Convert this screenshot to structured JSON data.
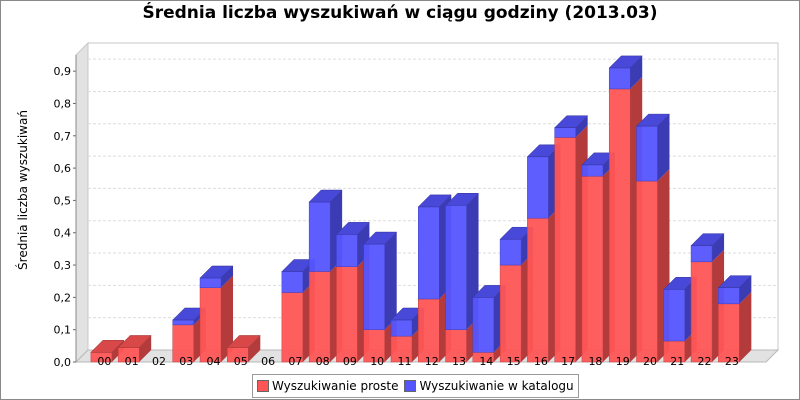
{
  "chart_data": {
    "type": "bar",
    "title": "Średnia liczba wyszukiwań w ciągu godziny (2013.03)",
    "xlabel": "",
    "ylabel": "Średnia liczba wyszukiwań",
    "ylim": [
      0,
      0.95
    ],
    "yticks": [
      "0,0",
      "0,1",
      "0,2",
      "0,3",
      "0,4",
      "0,5",
      "0,6",
      "0,7",
      "0,8",
      "0,9"
    ],
    "stacked": true,
    "grid": true,
    "legend_position": "bottom",
    "categories": [
      "00",
      "01",
      "02",
      "03",
      "04",
      "05",
      "06",
      "07",
      "08",
      "09",
      "10",
      "11",
      "12",
      "13",
      "14",
      "15",
      "16",
      "17",
      "18",
      "19",
      "20",
      "21",
      "22",
      "23"
    ],
    "series": [
      {
        "name": "Wyszukiwanie proste",
        "color": "#ff5555",
        "values": [
          0.03,
          0.045,
          0,
          0.115,
          0.23,
          0.045,
          0,
          0.215,
          0.28,
          0.295,
          0.1,
          0.08,
          0.195,
          0.1,
          0.03,
          0.3,
          0.445,
          0.695,
          0.575,
          0.845,
          0.56,
          0.065,
          0.31,
          0.18
        ]
      },
      {
        "name": "Wyszukiwanie w katalogu",
        "color": "#5555ff",
        "values": [
          0,
          0,
          0,
          0.015,
          0.03,
          0,
          0,
          0.065,
          0.215,
          0.1,
          0.265,
          0.05,
          0.285,
          0.385,
          0.17,
          0.08,
          0.19,
          0.03,
          0.035,
          0.065,
          0.17,
          0.16,
          0.05,
          0.05
        ]
      }
    ]
  }
}
